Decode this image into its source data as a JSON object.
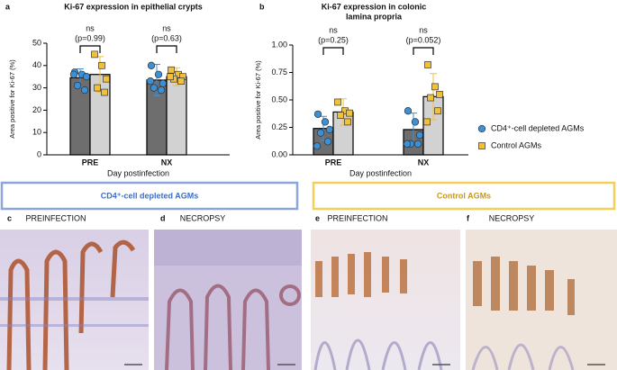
{
  "chart_data": [
    {
      "type": "bar",
      "panel": "a",
      "title": [
        "Ki-67 expression in epithelial crypts"
      ],
      "ylabel": "Area positive for Ki-67 (%)",
      "xlabel": "Day postinfection",
      "categories": [
        "PRE",
        "NX"
      ],
      "series": [
        {
          "color": "#6e6e6e",
          "point_color": "#3d8fd6",
          "marker": "circle",
          "values": [
            34.5,
            33.5
          ],
          "errors": [
            4,
            7
          ],
          "points": [
            [
              37,
              36,
              35,
              31,
              29,
              36
            ],
            [
              40,
              36,
              32,
              30,
              29,
              33
            ]
          ]
        },
        {
          "color": "#d2d2d2",
          "point_color": "#f2c13a",
          "marker": "square",
          "values": [
            36,
            35
          ],
          "errors": [
            8,
            4
          ],
          "points": [
            [
              45,
              40,
              34,
              30,
              28
            ],
            [
              38,
              36,
              35,
              34,
              33,
              35
            ]
          ]
        }
      ],
      "annotations": [
        [
          "ns",
          "(p=0.99)"
        ],
        [
          "ns",
          "(p=0.63)"
        ]
      ],
      "ylim": [
        0,
        50
      ],
      "yticks": [
        0,
        10,
        20,
        30,
        40,
        50
      ]
    },
    {
      "type": "bar",
      "panel": "b",
      "title": [
        "Ki-67 expression in colonic",
        "lamina propria"
      ],
      "ylabel": "Area positive for Ki-67 (%)",
      "xlabel": "Day postinfection",
      "categories": [
        "PRE",
        "NX"
      ],
      "series": [
        {
          "name": "CD4⁺-cell depleted AGMs",
          "color": "#6e6e6e",
          "point_color": "#3d8fd6",
          "marker": "circle",
          "values": [
            0.24,
            0.23
          ],
          "errors": [
            0.11,
            0.15
          ],
          "points": [
            [
              0.37,
              0.3,
              0.23,
              0.2,
              0.12,
              0.08
            ],
            [
              0.4,
              0.3,
              0.18,
              0.1,
              0.1,
              0.1
            ]
          ]
        },
        {
          "name": "Control AGMs",
          "color": "#d2d2d2",
          "point_color": "#f2c13a",
          "marker": "square",
          "values": [
            0.39,
            0.53
          ],
          "errors": [
            0.12,
            0.21
          ],
          "points": [
            [
              0.48,
              0.4,
              0.38,
              0.36,
              0.3
            ],
            [
              0.82,
              0.62,
              0.55,
              0.52,
              0.4,
              0.3
            ]
          ]
        }
      ],
      "annotations": [
        [
          "ns",
          "(p=0.25)"
        ],
        [
          "ns",
          "(p=0.052)"
        ]
      ],
      "ylim": [
        0,
        1
      ],
      "yticks": [
        {
          "value": 0,
          "label": "0.00"
        },
        {
          "value": 0.25,
          "label": "0.25"
        },
        {
          "value": 0.5,
          "label": "0.50"
        },
        {
          "value": 0.75,
          "label": "0.75"
        },
        {
          "value": 1,
          "label": "1.00"
        }
      ]
    }
  ],
  "groups": [
    "CD4⁺-cell depleted AGMs",
    "Control AGMs"
  ],
  "images": [
    {
      "panel": "c",
      "caption": "PREINFECTION"
    },
    {
      "panel": "d",
      "caption": "NECROPSY"
    },
    {
      "panel": "e",
      "caption": "PREINFECTION"
    },
    {
      "panel": "f",
      "caption": "NECROPSY"
    }
  ]
}
